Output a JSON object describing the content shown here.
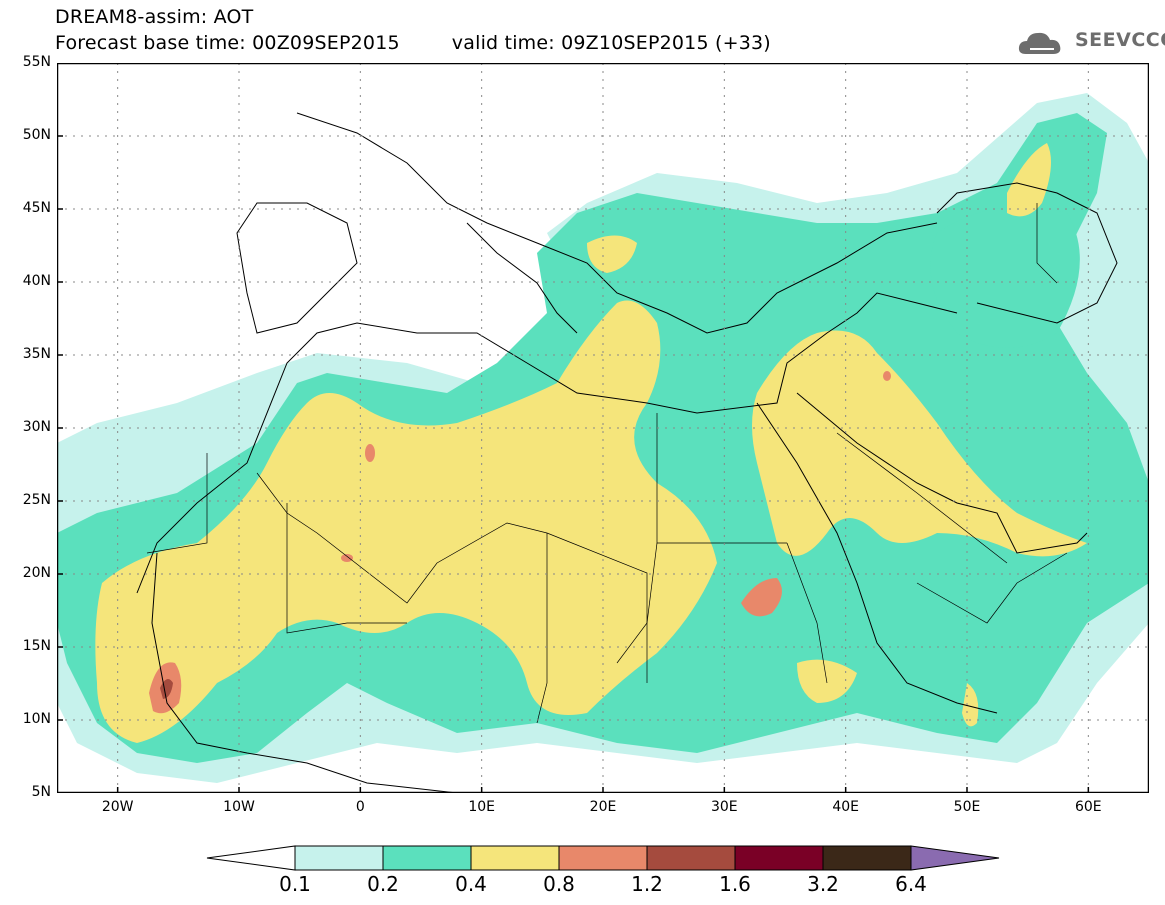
{
  "header": {
    "title_line1": "DREAM8-assim: AOT",
    "title_line2": "Forecast base time: 00Z09SEP2015",
    "valid_time": "valid time: 09Z10SEP2015 (+33)",
    "logo_text": "SEEVCCC",
    "logo_icon": "cloud-logo-icon"
  },
  "map": {
    "lon_range": [
      -25,
      65
    ],
    "lat_range": [
      5,
      55
    ],
    "lat_ticks": [
      "55N",
      "50N",
      "45N",
      "40N",
      "35N",
      "30N",
      "25N",
      "20N",
      "15N",
      "10N",
      "5N"
    ],
    "lon_ticks": [
      "20W",
      "10W",
      "0",
      "10E",
      "20E",
      "30E",
      "40E",
      "50E",
      "60E"
    ],
    "grid": true
  },
  "colorbar": {
    "levels": [
      "0.1",
      "0.2",
      "0.4",
      "0.8",
      "1.2",
      "1.6",
      "3.2",
      "6.4"
    ],
    "colors": [
      "#ffffff",
      "#c6f2ec",
      "#5be0bd",
      "#f5e57b",
      "#e8886a",
      "#a54b3e",
      "#7a0026",
      "#3b2818",
      "#8a6bb0"
    ]
  }
}
